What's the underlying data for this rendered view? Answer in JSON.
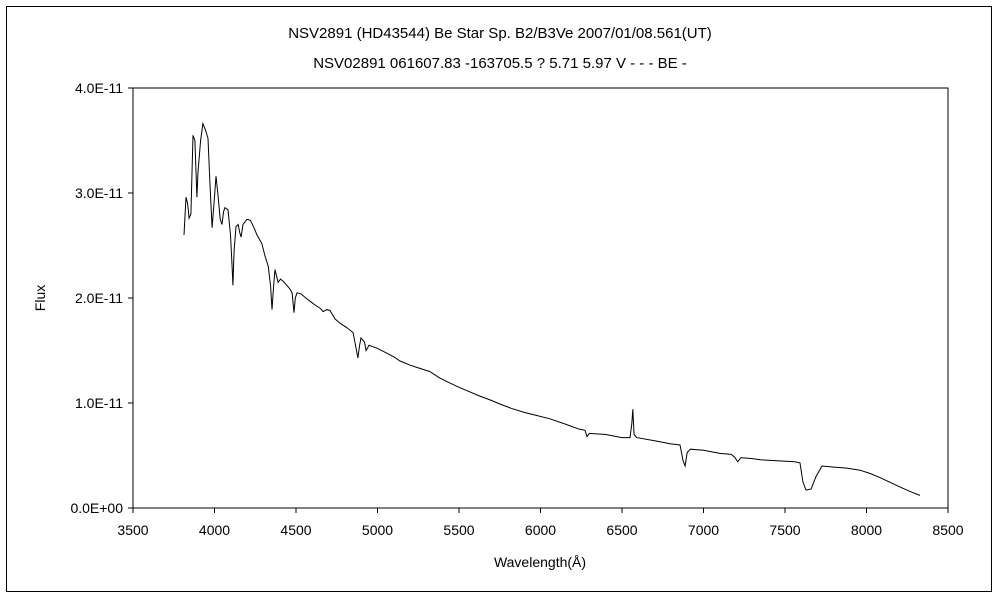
{
  "chart_data": {
    "type": "line",
    "title": "NSV2891 (HD43544)    Be Star    Sp. B2/B3Ve    2007/01/08.561(UT)",
    "subtitle": "NSV02891 061607.83 -163705.5 ? 5.71 5.97 V - - - BE -",
    "xlabel": "Wavelength(Å)",
    "ylabel": "Flux",
    "xlim": [
      3500,
      8500
    ],
    "ylim": [
      0,
      4e-11
    ],
    "xticks": [
      3500,
      4000,
      4500,
      5000,
      5500,
      6000,
      6500,
      7000,
      7500,
      8000,
      8500
    ],
    "xtick_labels": [
      "3500",
      "4000",
      "4500",
      "5000",
      "5500",
      "6000",
      "6500",
      "7000",
      "7500",
      "8000",
      "8500"
    ],
    "yticks": [
      0,
      1e-11,
      2e-11,
      3e-11,
      4e-11
    ],
    "ytick_labels": [
      "0.0E+00",
      "1.0E-11",
      "2.0E-11",
      "3.0E-11",
      "4.0E-11"
    ],
    "grid": false,
    "legend": "none",
    "y_unit_scale": 1e-11,
    "series": [
      {
        "name": "Flux",
        "color": "#000000",
        "points": [
          [
            3813,
            2.6
          ],
          [
            3825,
            2.96
          ],
          [
            3835,
            2.9
          ],
          [
            3844,
            2.76
          ],
          [
            3855,
            2.8
          ],
          [
            3868,
            3.55
          ],
          [
            3880,
            3.5
          ],
          [
            3892,
            2.96
          ],
          [
            3899,
            3.2
          ],
          [
            3915,
            3.5
          ],
          [
            3929,
            3.66
          ],
          [
            3945,
            3.6
          ],
          [
            3960,
            3.52
          ],
          [
            3972,
            3.1
          ],
          [
            3985,
            2.67
          ],
          [
            3997,
            2.9
          ],
          [
            4009,
            3.16
          ],
          [
            4020,
            3.0
          ],
          [
            4035,
            2.75
          ],
          [
            4046,
            2.7
          ],
          [
            4055,
            2.82
          ],
          [
            4064,
            2.86
          ],
          [
            4083,
            2.84
          ],
          [
            4098,
            2.6
          ],
          [
            4108,
            2.3
          ],
          [
            4113,
            2.12
          ],
          [
            4120,
            2.45
          ],
          [
            4132,
            2.68
          ],
          [
            4145,
            2.7
          ],
          [
            4155,
            2.62
          ],
          [
            4163,
            2.58
          ],
          [
            4175,
            2.7
          ],
          [
            4199,
            2.75
          ],
          [
            4220,
            2.74
          ],
          [
            4245,
            2.66
          ],
          [
            4261,
            2.6
          ],
          [
            4290,
            2.52
          ],
          [
            4310,
            2.4
          ],
          [
            4330,
            2.3
          ],
          [
            4345,
            2.1
          ],
          [
            4353,
            1.89
          ],
          [
            4362,
            2.1
          ],
          [
            4371,
            2.27
          ],
          [
            4385,
            2.18
          ],
          [
            4390,
            2.15
          ],
          [
            4405,
            2.18
          ],
          [
            4420,
            2.16
          ],
          [
            4445,
            2.12
          ],
          [
            4465,
            2.08
          ],
          [
            4476,
            2.05
          ],
          [
            4488,
            1.86
          ],
          [
            4496,
            2.0
          ],
          [
            4506,
            2.05
          ],
          [
            4530,
            2.04
          ],
          [
            4560,
            2.0
          ],
          [
            4586,
            1.97
          ],
          [
            4620,
            1.93
          ],
          [
            4650,
            1.9
          ],
          [
            4666,
            1.87
          ],
          [
            4690,
            1.89
          ],
          [
            4709,
            1.88
          ],
          [
            4740,
            1.8
          ],
          [
            4770,
            1.76
          ],
          [
            4810,
            1.72
          ],
          [
            4850,
            1.67
          ],
          [
            4865,
            1.55
          ],
          [
            4880,
            1.43
          ],
          [
            4890,
            1.55
          ],
          [
            4899,
            1.62
          ],
          [
            4920,
            1.58
          ],
          [
            4930,
            1.5
          ],
          [
            4948,
            1.55
          ],
          [
            5000,
            1.52
          ],
          [
            5050,
            1.48
          ],
          [
            5100,
            1.44
          ],
          [
            5138,
            1.4
          ],
          [
            5200,
            1.36
          ],
          [
            5260,
            1.33
          ],
          [
            5320,
            1.3
          ],
          [
            5380,
            1.24
          ],
          [
            5445,
            1.19
          ],
          [
            5500,
            1.15
          ],
          [
            5560,
            1.11
          ],
          [
            5620,
            1.07
          ],
          [
            5690,
            1.03
          ],
          [
            5752,
            0.99
          ],
          [
            5820,
            0.95
          ],
          [
            5900,
            0.91
          ],
          [
            5980,
            0.88
          ],
          [
            6058,
            0.85
          ],
          [
            6150,
            0.8
          ],
          [
            6240,
            0.75
          ],
          [
            6273,
            0.74
          ],
          [
            6285,
            0.68
          ],
          [
            6300,
            0.71
          ],
          [
            6400,
            0.7
          ],
          [
            6500,
            0.67
          ],
          [
            6549,
            0.67
          ],
          [
            6560,
            0.8
          ],
          [
            6566,
            0.94
          ],
          [
            6574,
            0.7
          ],
          [
            6590,
            0.67
          ],
          [
            6700,
            0.64
          ],
          [
            6800,
            0.61
          ],
          [
            6856,
            0.6
          ],
          [
            6875,
            0.45
          ],
          [
            6887,
            0.4
          ],
          [
            6900,
            0.53
          ],
          [
            6920,
            0.56
          ],
          [
            7000,
            0.55
          ],
          [
            7100,
            0.52
          ],
          [
            7170,
            0.51
          ],
          [
            7193,
            0.48
          ],
          [
            7210,
            0.44
          ],
          [
            7230,
            0.48
          ],
          [
            7300,
            0.47
          ],
          [
            7347,
            0.46
          ],
          [
            7450,
            0.45
          ],
          [
            7560,
            0.44
          ],
          [
            7592,
            0.43
          ],
          [
            7610,
            0.25
          ],
          [
            7629,
            0.17
          ],
          [
            7660,
            0.18
          ],
          [
            7690,
            0.3
          ],
          [
            7727,
            0.4
          ],
          [
            7800,
            0.39
          ],
          [
            7880,
            0.38
          ],
          [
            7960,
            0.36
          ],
          [
            8020,
            0.33
          ],
          [
            8083,
            0.29
          ],
          [
            8150,
            0.24
          ],
          [
            8220,
            0.19
          ],
          [
            8280,
            0.15
          ],
          [
            8328,
            0.12
          ]
        ]
      }
    ]
  }
}
